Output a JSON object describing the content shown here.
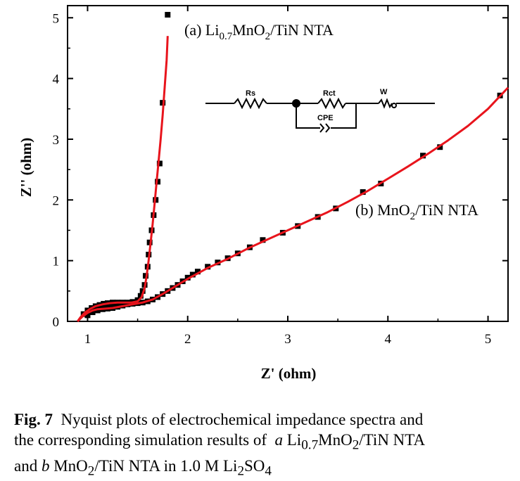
{
  "chart_data": {
    "type": "scatter",
    "xlabel": "Z' (ohm)",
    "ylabel": "Z'' (ohm)",
    "xlim": [
      0.8,
      5.2
    ],
    "ylim": [
      0,
      5.2
    ],
    "xticks": [
      "1",
      "2",
      "3",
      "4",
      "5"
    ],
    "yticks": [
      "0",
      "1",
      "2",
      "3",
      "4",
      "5"
    ],
    "series": [
      {
        "name": "(a) Li0.7MnO2/TiN NTA",
        "label_parts": {
          "prefix": "(a) Li",
          "sub1": "0.7",
          "mid": "MnO",
          "sub2": "2",
          "suffix": "/TiN NTA"
        },
        "marker_color": "#000000",
        "fit_color": "#e8141c",
        "points": [
          [
            0.96,
            0.12
          ],
          [
            1.0,
            0.18
          ],
          [
            1.04,
            0.22
          ],
          [
            1.08,
            0.25
          ],
          [
            1.12,
            0.27
          ],
          [
            1.16,
            0.29
          ],
          [
            1.2,
            0.3
          ],
          [
            1.25,
            0.31
          ],
          [
            1.3,
            0.31
          ],
          [
            1.35,
            0.31
          ],
          [
            1.4,
            0.31
          ],
          [
            1.45,
            0.32
          ],
          [
            1.5,
            0.35
          ],
          [
            1.53,
            0.42
          ],
          [
            1.55,
            0.5
          ],
          [
            1.57,
            0.6
          ],
          [
            1.58,
            0.75
          ],
          [
            1.6,
            0.9
          ],
          [
            1.61,
            1.1
          ],
          [
            1.62,
            1.3
          ],
          [
            1.64,
            1.5
          ],
          [
            1.66,
            1.75
          ],
          [
            1.68,
            2.0
          ],
          [
            1.7,
            2.3
          ],
          [
            1.72,
            2.6
          ],
          [
            1.75,
            3.6
          ],
          [
            1.8,
            5.05
          ]
        ],
        "fit": [
          [
            0.9,
            0.0
          ],
          [
            0.93,
            0.07
          ],
          [
            0.97,
            0.14
          ],
          [
            1.02,
            0.2
          ],
          [
            1.08,
            0.25
          ],
          [
            1.15,
            0.28
          ],
          [
            1.22,
            0.3
          ],
          [
            1.3,
            0.31
          ],
          [
            1.38,
            0.31
          ],
          [
            1.44,
            0.31
          ],
          [
            1.5,
            0.33
          ],
          [
            1.54,
            0.4
          ],
          [
            1.57,
            0.55
          ],
          [
            1.59,
            0.75
          ],
          [
            1.61,
            1.0
          ],
          [
            1.63,
            1.3
          ],
          [
            1.65,
            1.6
          ],
          [
            1.67,
            1.95
          ],
          [
            1.69,
            2.3
          ],
          [
            1.71,
            2.65
          ],
          [
            1.73,
            3.0
          ],
          [
            1.75,
            3.4
          ],
          [
            1.77,
            3.85
          ],
          [
            1.79,
            4.3
          ],
          [
            1.8,
            4.7
          ]
        ]
      },
      {
        "name": "(b) MnO2/TiN NTA",
        "label_parts": {
          "prefix": "(b) MnO",
          "sub1": "2",
          "suffix": "/TiN NTA"
        },
        "marker_color": "#000000",
        "fit_color": "#e8141c",
        "points": [
          [
            1.0,
            0.1
          ],
          [
            1.05,
            0.15
          ],
          [
            1.1,
            0.18
          ],
          [
            1.15,
            0.2
          ],
          [
            1.2,
            0.21
          ],
          [
            1.25,
            0.22
          ],
          [
            1.3,
            0.24
          ],
          [
            1.35,
            0.26
          ],
          [
            1.4,
            0.28
          ],
          [
            1.45,
            0.29
          ],
          [
            1.5,
            0.3
          ],
          [
            1.55,
            0.31
          ],
          [
            1.6,
            0.33
          ],
          [
            1.65,
            0.36
          ],
          [
            1.7,
            0.4
          ],
          [
            1.75,
            0.45
          ],
          [
            1.8,
            0.5
          ],
          [
            1.85,
            0.55
          ],
          [
            1.9,
            0.6
          ],
          [
            1.95,
            0.66
          ],
          [
            2.0,
            0.72
          ],
          [
            2.05,
            0.77
          ],
          [
            2.1,
            0.82
          ],
          [
            2.2,
            0.9
          ],
          [
            2.3,
            0.97
          ],
          [
            2.4,
            1.04
          ],
          [
            2.5,
            1.12
          ],
          [
            2.62,
            1.22
          ],
          [
            2.75,
            1.34
          ],
          [
            2.95,
            1.46
          ],
          [
            3.1,
            1.57
          ],
          [
            3.3,
            1.72
          ],
          [
            3.48,
            1.86
          ],
          [
            3.75,
            2.13
          ],
          [
            3.93,
            2.27
          ],
          [
            4.35,
            2.73
          ],
          [
            4.52,
            2.87
          ],
          [
            5.12,
            3.72
          ]
        ],
        "fit": [
          [
            0.9,
            0.0
          ],
          [
            0.95,
            0.08
          ],
          [
            1.0,
            0.14
          ],
          [
            1.05,
            0.18
          ],
          [
            1.1,
            0.2
          ],
          [
            1.18,
            0.21
          ],
          [
            1.25,
            0.22
          ],
          [
            1.35,
            0.25
          ],
          [
            1.45,
            0.28
          ],
          [
            1.55,
            0.31
          ],
          [
            1.65,
            0.36
          ],
          [
            1.75,
            0.45
          ],
          [
            1.85,
            0.55
          ],
          [
            2.0,
            0.7
          ],
          [
            2.2,
            0.88
          ],
          [
            2.4,
            1.03
          ],
          [
            2.6,
            1.2
          ],
          [
            2.8,
            1.35
          ],
          [
            3.0,
            1.5
          ],
          [
            3.2,
            1.65
          ],
          [
            3.4,
            1.8
          ],
          [
            3.6,
            1.97
          ],
          [
            3.8,
            2.15
          ],
          [
            4.0,
            2.35
          ],
          [
            4.2,
            2.55
          ],
          [
            4.4,
            2.76
          ],
          [
            4.6,
            2.98
          ],
          [
            4.8,
            3.22
          ],
          [
            5.0,
            3.5
          ],
          [
            5.2,
            3.85
          ]
        ]
      }
    ],
    "inset_circuit": {
      "labels": [
        "Rs",
        "Rct",
        "W",
        "CPE"
      ]
    },
    "grid": false
  },
  "caption": {
    "fig_label": "Fig. 7",
    "line1": "Nyquist plots of electrochemical impedance spectra and",
    "line2_prefix": "the corresponding simulation results of",
    "a_mark": "a",
    "a_text_prefix": "Li",
    "a_sub1": "0.7",
    "a_text_mid": "MnO",
    "a_sub2": "2",
    "a_text_suffix": "/TiN NTA",
    "line3_and": "and",
    "b_mark": "b",
    "b_text_prefix": "MnO",
    "b_sub1": "2",
    "b_text_suffix": "/TiN NTA in 1.0 M Li",
    "b_sub2": "2",
    "b_text_end": "SO",
    "b_sub3": "4"
  }
}
